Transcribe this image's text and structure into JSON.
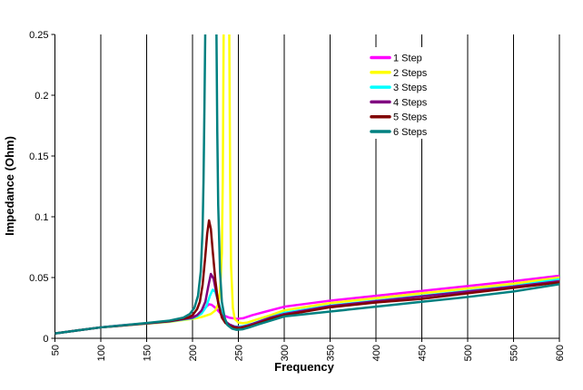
{
  "chart_data": {
    "type": "line",
    "title": "",
    "xlabel": "Frequency",
    "ylabel": "Impedance (Ohm)",
    "xlim": [
      50,
      600
    ],
    "ylim": [
      0,
      0.25
    ],
    "x_ticks": [
      50,
      100,
      150,
      200,
      250,
      300,
      350,
      400,
      450,
      500,
      550,
      600
    ],
    "y_ticks": [
      0,
      0.05,
      0.1,
      0.15,
      0.2,
      0.25
    ],
    "y_tick_labels": [
      "0",
      "0.05",
      "0.1",
      "0.15",
      "0.2",
      "0.25"
    ],
    "grid": "vertical-only",
    "legend_position": "inside-upper-right",
    "background": "#FFFFFF",
    "axis_color": "#000000",
    "series": [
      {
        "name": "1 Step",
        "color": "#FF00FF",
        "points": [
          [
            50,
            0.004
          ],
          [
            75,
            0.0065
          ],
          [
            100,
            0.009
          ],
          [
            125,
            0.0108
          ],
          [
            150,
            0.0122
          ],
          [
            175,
            0.014
          ],
          [
            190,
            0.0155
          ],
          [
            200,
            0.0175
          ],
          [
            205,
            0.019
          ],
          [
            210,
            0.022
          ],
          [
            215,
            0.026
          ],
          [
            218,
            0.028
          ],
          [
            221,
            0.0275
          ],
          [
            225,
            0.025
          ],
          [
            230,
            0.021
          ],
          [
            235,
            0.0185
          ],
          [
            240,
            0.017
          ],
          [
            248,
            0.016
          ],
          [
            255,
            0.0165
          ],
          [
            265,
            0.019
          ],
          [
            280,
            0.022
          ],
          [
            300,
            0.026
          ],
          [
            325,
            0.0285
          ],
          [
            350,
            0.031
          ],
          [
            400,
            0.035
          ],
          [
            450,
            0.039
          ],
          [
            500,
            0.043
          ],
          [
            550,
            0.047
          ],
          [
            600,
            0.0515
          ]
        ]
      },
      {
        "name": "2 Steps",
        "color": "#FFFF00",
        "points": [
          [
            50,
            0.004
          ],
          [
            75,
            0.0065
          ],
          [
            100,
            0.009
          ],
          [
            125,
            0.0105
          ],
          [
            150,
            0.012
          ],
          [
            175,
            0.0135
          ],
          [
            200,
            0.016
          ],
          [
            210,
            0.0175
          ],
          [
            220,
            0.02
          ],
          [
            225,
            0.023
          ],
          [
            228,
            0.028
          ],
          [
            230,
            0.038
          ],
          [
            232,
            0.07
          ],
          [
            233,
            0.13
          ],
          [
            234,
            0.26
          ],
          [
            240,
            0.26
          ],
          [
            241,
            0.13
          ],
          [
            242,
            0.06
          ],
          [
            244,
            0.025
          ],
          [
            246,
            0.016
          ],
          [
            250,
            0.013
          ],
          [
            255,
            0.0125
          ],
          [
            260,
            0.013
          ],
          [
            270,
            0.0155
          ],
          [
            285,
            0.019
          ],
          [
            300,
            0.023
          ],
          [
            350,
            0.029
          ],
          [
            400,
            0.033
          ],
          [
            450,
            0.037
          ],
          [
            500,
            0.041
          ],
          [
            550,
            0.045
          ],
          [
            600,
            0.05
          ]
        ]
      },
      {
        "name": "3 Steps",
        "color": "#00FFFF",
        "points": [
          [
            50,
            0.004
          ],
          [
            75,
            0.0065
          ],
          [
            100,
            0.009
          ],
          [
            125,
            0.0106
          ],
          [
            150,
            0.0122
          ],
          [
            175,
            0.0138
          ],
          [
            200,
            0.0165
          ],
          [
            205,
            0.018
          ],
          [
            210,
            0.0205
          ],
          [
            215,
            0.026
          ],
          [
            219,
            0.035
          ],
          [
            222,
            0.04
          ],
          [
            225,
            0.038
          ],
          [
            229,
            0.028
          ],
          [
            233,
            0.018
          ],
          [
            237,
            0.013
          ],
          [
            242,
            0.0105
          ],
          [
            248,
            0.0095
          ],
          [
            255,
            0.01
          ],
          [
            265,
            0.012
          ],
          [
            280,
            0.016
          ],
          [
            300,
            0.021
          ],
          [
            350,
            0.027
          ],
          [
            400,
            0.031
          ],
          [
            450,
            0.035
          ],
          [
            500,
            0.039
          ],
          [
            550,
            0.043
          ],
          [
            600,
            0.0485
          ]
        ]
      },
      {
        "name": "4 Steps",
        "color": "#800080",
        "points": [
          [
            50,
            0.004
          ],
          [
            75,
            0.0065
          ],
          [
            100,
            0.009
          ],
          [
            125,
            0.0106
          ],
          [
            150,
            0.0122
          ],
          [
            175,
            0.014
          ],
          [
            200,
            0.017
          ],
          [
            205,
            0.019
          ],
          [
            210,
            0.023
          ],
          [
            214,
            0.03
          ],
          [
            217,
            0.042
          ],
          [
            220,
            0.053
          ],
          [
            223,
            0.049
          ],
          [
            227,
            0.033
          ],
          [
            231,
            0.02
          ],
          [
            235,
            0.0145
          ],
          [
            240,
            0.0115
          ],
          [
            246,
            0.0095
          ],
          [
            252,
            0.009
          ],
          [
            260,
            0.0105
          ],
          [
            270,
            0.013
          ],
          [
            285,
            0.017
          ],
          [
            300,
            0.02
          ],
          [
            350,
            0.0265
          ],
          [
            400,
            0.0305
          ],
          [
            450,
            0.0345
          ],
          [
            500,
            0.0385
          ],
          [
            550,
            0.0425
          ],
          [
            600,
            0.047
          ]
        ]
      },
      {
        "name": "5 Steps",
        "color": "#800000",
        "points": [
          [
            50,
            0.004
          ],
          [
            75,
            0.0065
          ],
          [
            100,
            0.009
          ],
          [
            125,
            0.0106
          ],
          [
            150,
            0.0124
          ],
          [
            175,
            0.0142
          ],
          [
            195,
            0.017
          ],
          [
            200,
            0.019
          ],
          [
            205,
            0.024
          ],
          [
            208,
            0.03
          ],
          [
            211,
            0.044
          ],
          [
            214,
            0.068
          ],
          [
            216,
            0.086
          ],
          [
            218,
            0.097
          ],
          [
            220,
            0.09
          ],
          [
            222,
            0.072
          ],
          [
            225,
            0.047
          ],
          [
            228,
            0.029
          ],
          [
            232,
            0.017
          ],
          [
            236,
            0.0125
          ],
          [
            241,
            0.01
          ],
          [
            247,
            0.0085
          ],
          [
            253,
            0.0085
          ],
          [
            262,
            0.01
          ],
          [
            272,
            0.0125
          ],
          [
            285,
            0.016
          ],
          [
            300,
            0.019
          ],
          [
            350,
            0.0255
          ],
          [
            400,
            0.0295
          ],
          [
            450,
            0.0325
          ],
          [
            500,
            0.037
          ],
          [
            550,
            0.0415
          ],
          [
            600,
            0.046
          ]
        ]
      },
      {
        "name": "6 Steps",
        "color": "#008080",
        "points": [
          [
            50,
            0.004
          ],
          [
            75,
            0.0065
          ],
          [
            100,
            0.009
          ],
          [
            125,
            0.0108
          ],
          [
            150,
            0.0126
          ],
          [
            175,
            0.0146
          ],
          [
            190,
            0.017
          ],
          [
            197,
            0.02
          ],
          [
            202,
            0.025
          ],
          [
            206,
            0.035
          ],
          [
            209,
            0.055
          ],
          [
            211,
            0.09
          ],
          [
            212,
            0.13
          ],
          [
            213,
            0.19
          ],
          [
            214,
            0.26
          ],
          [
            226,
            0.26
          ],
          [
            227,
            0.17
          ],
          [
            228,
            0.11
          ],
          [
            230,
            0.055
          ],
          [
            232,
            0.03
          ],
          [
            235,
            0.017
          ],
          [
            238,
            0.011
          ],
          [
            243,
            0.008
          ],
          [
            248,
            0.007
          ],
          [
            255,
            0.0075
          ],
          [
            262,
            0.009
          ],
          [
            272,
            0.0115
          ],
          [
            285,
            0.0145
          ],
          [
            300,
            0.018
          ],
          [
            350,
            0.022
          ],
          [
            400,
            0.026
          ],
          [
            450,
            0.03
          ],
          [
            500,
            0.034
          ],
          [
            550,
            0.0385
          ],
          [
            600,
            0.0445
          ]
        ]
      }
    ]
  }
}
